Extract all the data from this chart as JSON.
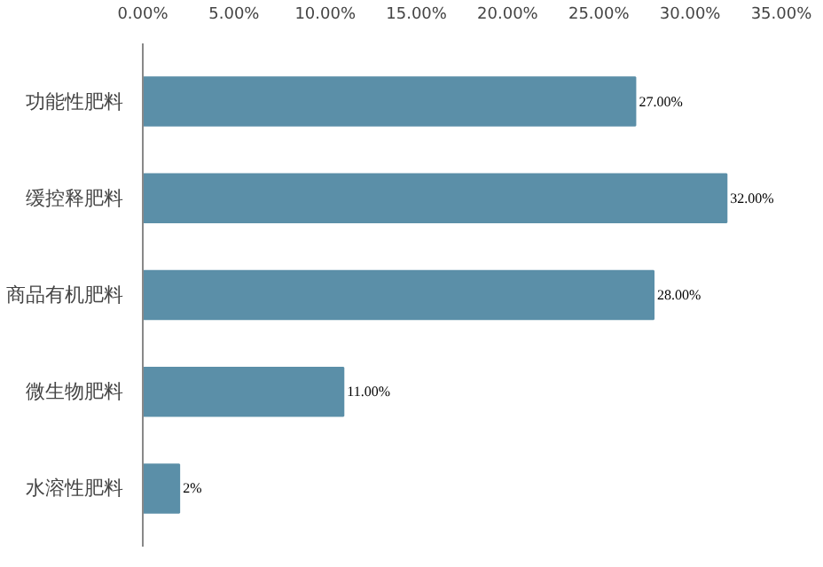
{
  "chart_data": {
    "type": "bar",
    "orientation": "horizontal",
    "categories": [
      "功能性肥料",
      "缓控释肥料",
      "商品有机肥料",
      "微生物肥料",
      "水溶性肥料"
    ],
    "values": [
      27,
      32,
      28,
      11,
      2
    ],
    "value_labels": [
      "27.00%",
      "32.00%",
      "28.00%",
      "11.00%",
      "2%"
    ],
    "color": "#5b8fa8",
    "xlim": [
      0,
      35
    ],
    "xticks": [
      {
        "value": 0,
        "label": "0.00%"
      },
      {
        "value": 5,
        "label": "5.00%"
      },
      {
        "value": 10,
        "label": "10.00%"
      },
      {
        "value": 15,
        "label": "15.00%"
      },
      {
        "value": 20,
        "label": "20.00%"
      },
      {
        "value": 25,
        "label": "25.00%"
      },
      {
        "value": 30,
        "label": "30.00%"
      },
      {
        "value": 35,
        "label": "35.00%"
      }
    ],
    "grid": false
  }
}
